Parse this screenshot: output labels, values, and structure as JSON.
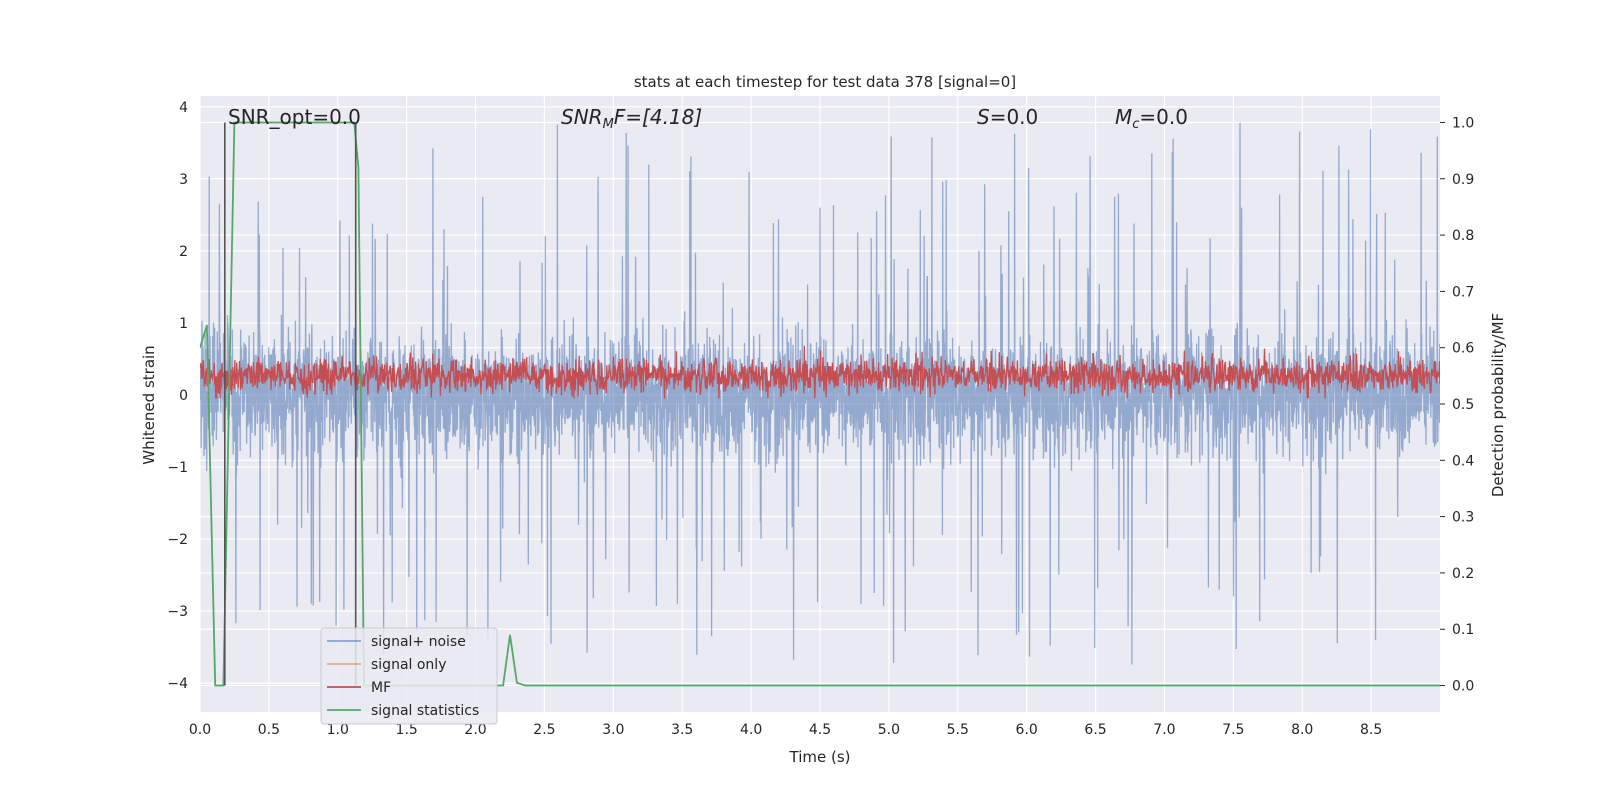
{
  "chart_data": {
    "type": "line",
    "title": "stats at each timestep for test data 378 [signal=0]",
    "xlabel": "Time (s)",
    "ylabel": "Whitened strain",
    "ylabel_right": "Detection probability/MF",
    "xlim": [
      0.0,
      9.0
    ],
    "ylim": [
      -4.4,
      4.15
    ],
    "ylim_right": [
      -0.047,
      1.047
    ],
    "x_ticks": [
      "0.0",
      "0.5",
      "1.0",
      "1.5",
      "2.0",
      "2.5",
      "3.0",
      "3.5",
      "4.0",
      "4.5",
      "5.0",
      "5.5",
      "6.0",
      "6.5",
      "7.0",
      "7.5",
      "8.0",
      "8.5"
    ],
    "y_ticks": [
      "−4",
      "−3",
      "−2",
      "−1",
      "0",
      "1",
      "2",
      "3",
      "4"
    ],
    "y_ticks_right": [
      "0.0",
      "0.1",
      "0.2",
      "0.3",
      "0.4",
      "0.5",
      "0.6",
      "0.7",
      "0.8",
      "0.9",
      "1.0"
    ],
    "grid": true,
    "legend_position": "lower-left",
    "annotations": {
      "snr_opt": "SNR_opt=0.0",
      "snr_mf_label": "SNR",
      "snr_mf_sub": "M",
      "snr_mf_rest": "F=[4.18]",
      "s_label": "S",
      "s_value": "=0.0",
      "mc_label": "M",
      "mc_sub": "c",
      "mc_value": "=0.0"
    },
    "series": [
      {
        "name": "signal+ noise",
        "color": "#4c72b0",
        "axis": "left",
        "envelope": {
          "typical_max": 1.5,
          "typical_min": -1.6,
          "peak_max": 3.8,
          "peak_min": -4.0
        }
      },
      {
        "name": "signal only",
        "color": "#dd8452",
        "axis": "left",
        "values": "0 throughout"
      },
      {
        "name": "MF",
        "color": "#c44e52",
        "axis": "right",
        "envelope": {
          "center": 0.55,
          "min": 0.51,
          "max": 0.63
        }
      },
      {
        "name": "signal statistics",
        "color": "#55a868",
        "axis": "right",
        "x": [
          0.0,
          0.05,
          0.11,
          0.17,
          0.25,
          1.12,
          1.15,
          1.19,
          2.2,
          2.25,
          2.3,
          2.36,
          2.42,
          9.0
        ],
        "y": [
          0.6,
          0.64,
          0.0,
          0.0,
          1.0,
          1.0,
          0.92,
          0.0,
          0.0,
          0.09,
          0.005,
          0.0,
          0.0,
          0.0
        ]
      }
    ],
    "vertical_markers_x": [
      0.18,
      1.13
    ],
    "vertical_marker_color": "#555555"
  }
}
